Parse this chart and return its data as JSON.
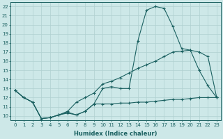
{
  "xlabel": "Humidex (Indice chaleur)",
  "bg_color": "#cde8e8",
  "line_color": "#1a6060",
  "grid_color": "#b0d0d0",
  "xlim": [
    -0.5,
    23.5
  ],
  "ylim": [
    9.5,
    22.5
  ],
  "yticks": [
    10,
    11,
    12,
    13,
    14,
    15,
    16,
    17,
    18,
    19,
    20,
    21,
    22
  ],
  "xticks": [
    0,
    1,
    2,
    3,
    4,
    5,
    6,
    7,
    8,
    9,
    10,
    11,
    12,
    13,
    14,
    15,
    16,
    17,
    18,
    19,
    20,
    21,
    22,
    23
  ],
  "line1_x": [
    0,
    1,
    2,
    3,
    4,
    5,
    6,
    7,
    8,
    9,
    10,
    11,
    12,
    13,
    14,
    15,
    16,
    17,
    18,
    19,
    20,
    21,
    22,
    23
  ],
  "line1_y": [
    12.8,
    12.0,
    11.5,
    9.7,
    9.8,
    10.1,
    10.4,
    10.1,
    10.5,
    11.3,
    13.0,
    13.2,
    13.0,
    13.0,
    18.2,
    21.6,
    22.0,
    21.8,
    19.8,
    17.4,
    17.2,
    15.0,
    13.3,
    12.0
  ],
  "line2_x": [
    0,
    1,
    2,
    3,
    4,
    5,
    6,
    7,
    8,
    9,
    10,
    11,
    12,
    13,
    14,
    15,
    16,
    17,
    18,
    19,
    20,
    21,
    22,
    23
  ],
  "line2_y": [
    12.8,
    12.0,
    11.5,
    9.7,
    9.8,
    10.1,
    10.5,
    11.5,
    12.0,
    12.5,
    13.5,
    13.8,
    14.2,
    14.7,
    15.2,
    15.6,
    16.0,
    16.5,
    17.0,
    17.1,
    17.2,
    17.0,
    16.5,
    12.0
  ],
  "line3_x": [
    0,
    1,
    2,
    3,
    4,
    5,
    6,
    7,
    8,
    9,
    10,
    11,
    12,
    13,
    14,
    15,
    16,
    17,
    18,
    19,
    20,
    21,
    22,
    23
  ],
  "line3_y": [
    12.8,
    12.0,
    11.5,
    9.7,
    9.8,
    10.1,
    10.3,
    10.1,
    10.5,
    11.3,
    11.3,
    11.3,
    11.4,
    11.4,
    11.5,
    11.5,
    11.6,
    11.7,
    11.8,
    11.8,
    11.9,
    12.0,
    12.0,
    12.0
  ]
}
